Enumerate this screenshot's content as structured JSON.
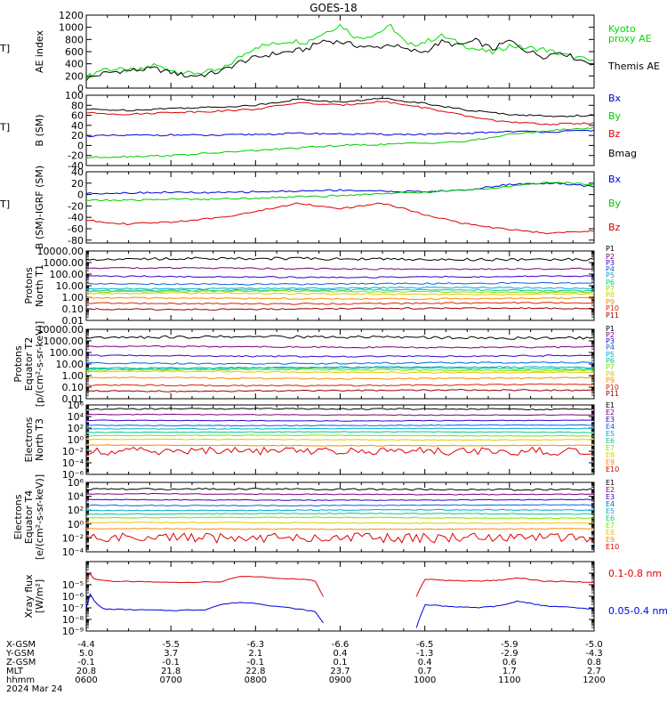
{
  "title": "GOES-18",
  "chart_data": [
    {
      "type": "line",
      "ylabel": "AE index [nT]",
      "ylim": [
        0,
        1200
      ],
      "log": false,
      "yticks": [
        0,
        200,
        400,
        600,
        800,
        1000,
        1200
      ],
      "ytick_labels": [
        "0",
        "200",
        "400",
        "600",
        "800",
        "1000",
        "1200"
      ],
      "legend": [
        "Kyoto",
        "proxy AE",
        "Themis AE"
      ],
      "series": [
        {
          "name": "Kyoto proxy AE",
          "color": "#00dd00",
          "x": [
            6.0,
            6.2,
            6.4,
            6.6,
            6.8,
            7.0,
            7.2,
            7.4,
            7.6,
            7.8,
            8.0,
            8.2,
            8.4,
            8.6,
            8.8,
            9.0,
            9.2,
            9.4,
            9.6,
            9.8,
            10.0,
            10.2,
            10.4,
            10.6,
            10.8,
            11.0,
            11.2,
            11.4,
            11.6,
            11.8,
            12.0
          ],
          "y": [
            180,
            320,
            300,
            280,
            380,
            300,
            240,
            260,
            300,
            500,
            680,
            720,
            780,
            760,
            900,
            1040,
            820,
            880,
            1020,
            700,
            760,
            860,
            740,
            640,
            580,
            700,
            660,
            640,
            560,
            500,
            440
          ]
        },
        {
          "name": "Themis AE",
          "color": "#000000",
          "x": [
            6.0,
            6.2,
            6.4,
            6.6,
            6.8,
            7.0,
            7.2,
            7.4,
            7.6,
            7.8,
            8.0,
            8.2,
            8.4,
            8.6,
            8.8,
            9.0,
            9.2,
            9.4,
            9.6,
            9.8,
            10.0,
            10.2,
            10.4,
            10.6,
            10.8,
            11.0,
            11.2,
            11.4,
            11.6,
            11.8,
            12.0
          ],
          "y": [
            150,
            240,
            280,
            300,
            320,
            260,
            200,
            220,
            280,
            420,
            500,
            560,
            600,
            640,
            780,
            760,
            700,
            660,
            720,
            620,
            600,
            760,
            700,
            780,
            640,
            780,
            620,
            520,
            600,
            480,
            400
          ]
        }
      ]
    },
    {
      "type": "line",
      "ylabel": "B (SM) [nT]",
      "ylim": [
        -40,
        100
      ],
      "log": false,
      "yticks": [
        -40,
        -20,
        0,
        20,
        40,
        60,
        80,
        100
      ],
      "ytick_labels": [
        "-40",
        "-20",
        "0",
        "20",
        "40",
        "60",
        "80",
        "100"
      ],
      "legend": [
        "Bx",
        "By",
        "Bz",
        "Bmag"
      ],
      "series": [
        {
          "name": "Bx",
          "color": "#0000dd",
          "x": [
            6.0,
            6.5,
            7.0,
            7.5,
            8.0,
            8.5,
            9.0,
            9.5,
            10.0,
            10.5,
            11.0,
            11.5,
            12.0
          ],
          "y": [
            19,
            20,
            21,
            20,
            22,
            24,
            23,
            22,
            22,
            24,
            28,
            27,
            30
          ]
        },
        {
          "name": "By",
          "color": "#00cc00",
          "x": [
            6.0,
            6.5,
            7.0,
            7.5,
            8.0,
            8.5,
            9.0,
            9.5,
            10.0,
            10.5,
            11.0,
            11.5,
            12.0
          ],
          "y": [
            -24,
            -22,
            -20,
            -15,
            -10,
            -5,
            0,
            2,
            5,
            8,
            22,
            30,
            35
          ]
        },
        {
          "name": "Bz",
          "color": "#dd0000",
          "x": [
            6.0,
            6.5,
            7.0,
            7.5,
            8.0,
            8.5,
            9.0,
            9.5,
            10.0,
            10.5,
            11.0,
            11.5,
            12.0
          ],
          "y": [
            65,
            62,
            66,
            68,
            72,
            85,
            80,
            88,
            75,
            58,
            46,
            42,
            45
          ]
        },
        {
          "name": "Bmag",
          "color": "#000000",
          "x": [
            6.0,
            6.5,
            7.0,
            7.5,
            8.0,
            8.5,
            9.0,
            9.5,
            10.0,
            10.5,
            11.0,
            11.5,
            12.0
          ],
          "y": [
            72,
            70,
            74,
            76,
            80,
            92,
            86,
            94,
            84,
            70,
            62,
            58,
            60
          ]
        }
      ]
    },
    {
      "type": "line",
      "ylabel": "B (SM)-IGRF (SM) [nT]",
      "ylim": [
        -85,
        40
      ],
      "log": false,
      "yticks": [
        -80,
        -60,
        -40,
        -20,
        0,
        20,
        40
      ],
      "ytick_labels": [
        "-80",
        "-60",
        "-40",
        "-20",
        "0",
        "20",
        "40"
      ],
      "legend": [
        "Bx",
        "By",
        "Bz"
      ],
      "series": [
        {
          "name": "Bx",
          "color": "#0000dd",
          "x": [
            6.0,
            6.5,
            7.0,
            7.5,
            8.0,
            8.5,
            9.0,
            9.5,
            10.0,
            10.5,
            11.0,
            11.5,
            12.0
          ],
          "y": [
            2,
            3,
            4,
            3,
            5,
            6,
            8,
            6,
            5,
            8,
            18,
            20,
            14
          ]
        },
        {
          "name": "By",
          "color": "#00cc00",
          "x": [
            6.0,
            6.5,
            7.0,
            7.5,
            8.0,
            8.5,
            9.0,
            9.5,
            10.0,
            10.5,
            11.0,
            11.5,
            12.0
          ],
          "y": [
            -10,
            -10,
            -8,
            -8,
            -6,
            -4,
            -2,
            2,
            4,
            8,
            14,
            22,
            18
          ]
        },
        {
          "name": "Bz",
          "color": "#dd0000",
          "x": [
            6.0,
            6.5,
            7.0,
            7.5,
            8.0,
            8.5,
            9.0,
            9.5,
            10.0,
            10.5,
            11.0,
            11.5,
            12.0
          ],
          "y": [
            -45,
            -52,
            -48,
            -42,
            -30,
            -15,
            -25,
            -15,
            -35,
            -52,
            -62,
            -68,
            -64
          ]
        }
      ]
    },
    {
      "type": "line",
      "ylabel": "Protons North T1",
      "log": true,
      "ylim": [
        0.01,
        10000
      ],
      "yticks": [
        0.01,
        0.1,
        1,
        10,
        100,
        1000,
        10000
      ],
      "ytick_labels": [
        "0.01",
        "0.10",
        "1.00",
        "10.00",
        "100.00",
        "1000.00",
        "10000.00"
      ],
      "legend": [
        "P1",
        "P2",
        "P3",
        "P4",
        "P5",
        "P6",
        "P7",
        "P8",
        "P9",
        "P10",
        "P11"
      ],
      "series": [
        {
          "name": "P1",
          "color": "#000000",
          "level": 2000
        },
        {
          "name": "P2",
          "color": "#7a0077",
          "level": 300
        },
        {
          "name": "P3",
          "color": "#3300cc",
          "level": 60
        },
        {
          "name": "P4",
          "color": "#0066dd",
          "level": 15
        },
        {
          "name": "P5",
          "color": "#00aacc",
          "level": 6
        },
        {
          "name": "P6",
          "color": "#00cc88",
          "level": 4
        },
        {
          "name": "P7",
          "color": "#88dd00",
          "level": 3
        },
        {
          "name": "P8",
          "color": "#ddcc00",
          "level": 2
        },
        {
          "name": "P9",
          "color": "#ff8800",
          "level": 0.8
        },
        {
          "name": "P10",
          "color": "#dd2200",
          "level": 0.3
        },
        {
          "name": "P11",
          "color": "#990000",
          "level": 0.1
        }
      ]
    },
    {
      "type": "line",
      "ylabel": "Protons Equator T2 [p/(cm²-s-sr-keV)]",
      "log": true,
      "ylim": [
        0.01,
        10000
      ],
      "yticks": [
        0.01,
        0.1,
        1,
        10,
        100,
        1000,
        10000
      ],
      "ytick_labels": [
        "0.01",
        "0.10",
        "1.00",
        "10.00",
        "100.00",
        "1000.00",
        "10000.00"
      ],
      "legend": [
        "P1",
        "P2",
        "P3",
        "P4",
        "P5",
        "P6",
        "P7",
        "P8",
        "P9",
        "P10",
        "P11"
      ],
      "series": [
        {
          "name": "P1",
          "color": "#000000",
          "level": 2000
        },
        {
          "name": "P2",
          "color": "#7a0077",
          "level": 300
        },
        {
          "name": "P3",
          "color": "#3300cc",
          "level": 50
        },
        {
          "name": "P4",
          "color": "#0066dd",
          "level": 12
        },
        {
          "name": "P5",
          "color": "#00aacc",
          "level": 5
        },
        {
          "name": "P6",
          "color": "#00cc88",
          "level": 4
        },
        {
          "name": "P7",
          "color": "#88dd00",
          "level": 3
        },
        {
          "name": "P8",
          "color": "#ddcc00",
          "level": 2
        },
        {
          "name": "P9",
          "color": "#ff8800",
          "level": 0.6
        },
        {
          "name": "P10",
          "color": "#dd2200",
          "level": 0.15
        },
        {
          "name": "P11",
          "color": "#990000",
          "level": 0.05
        }
      ]
    },
    {
      "type": "line",
      "ylabel": "Electrons North T3",
      "log": true,
      "ylim": [
        1e-06,
        1000000.0
      ],
      "yticks": [
        1e-06,
        0.0001,
        0.01,
        1,
        100,
        10000,
        1000000
      ],
      "ytick_labels": [
        "10⁻⁶",
        "10⁻⁴",
        "10⁻²",
        "10⁰",
        "10²",
        "10⁴",
        "10⁶"
      ],
      "legend": [
        "E1",
        "E2",
        "E3",
        "E4",
        "E5",
        "E6",
        "E7",
        "E8",
        "E9",
        "E10"
      ],
      "series": [
        {
          "name": "E1",
          "color": "#000000",
          "level": 200000
        },
        {
          "name": "E2",
          "color": "#7a0077",
          "level": 20000
        },
        {
          "name": "E3",
          "color": "#3300cc",
          "level": 2000
        },
        {
          "name": "E4",
          "color": "#0066dd",
          "level": 300
        },
        {
          "name": "E5",
          "color": "#00aacc",
          "level": 80
        },
        {
          "name": "E6",
          "color": "#00cc88",
          "level": 20
        },
        {
          "name": "E7",
          "color": "#88dd00",
          "level": 5
        },
        {
          "name": "E8",
          "color": "#ddcc00",
          "level": 1
        },
        {
          "name": "E9",
          "color": "#ff8800",
          "level": 0.1
        },
        {
          "name": "E10",
          "color": "#dd0000",
          "level": 0.01
        }
      ]
    },
    {
      "type": "line",
      "ylabel": "Electrons Equator T4 [e/(cm²-s-sr-keV)]",
      "log": true,
      "ylim": [
        0.0001,
        1000000.0
      ],
      "yticks": [
        0.0001,
        0.01,
        1,
        100,
        10000,
        1000000
      ],
      "ytick_labels": [
        "10⁻⁴",
        "10⁻²",
        "10⁰",
        "10²",
        "10⁴",
        "10⁶"
      ],
      "legend": [
        "E1",
        "E2",
        "E3",
        "E4",
        "E5",
        "E6",
        "E7",
        "E8",
        "E9",
        "E10"
      ],
      "series": [
        {
          "name": "E1",
          "color": "#000000",
          "level": 100000
        },
        {
          "name": "E2",
          "color": "#7a0077",
          "level": 20000
        },
        {
          "name": "E3",
          "color": "#3300cc",
          "level": 3000
        },
        {
          "name": "E4",
          "color": "#0066dd",
          "level": 500
        },
        {
          "name": "E5",
          "color": "#00aacc",
          "level": 100
        },
        {
          "name": "E6",
          "color": "#00cc88",
          "level": 30
        },
        {
          "name": "E7",
          "color": "#88dd00",
          "level": 8
        },
        {
          "name": "E8",
          "color": "#ddcc00",
          "level": 1.5
        },
        {
          "name": "E9",
          "color": "#ff8800",
          "level": 0.2
        },
        {
          "name": "E10",
          "color": "#dd0000",
          "level": 0.01
        }
      ]
    },
    {
      "type": "line",
      "ylabel": "Xray flux [W/m²]",
      "log": true,
      "ylim": [
        1e-09,
        0.001
      ],
      "yticks": [
        1e-09,
        1e-08,
        1e-07,
        1e-06,
        1e-05,
        0.0001,
        0.001
      ],
      "ytick_labels": [
        "10⁻⁹",
        "10⁻⁸",
        "10⁻⁷",
        "10⁻⁶",
        "10⁻⁵",
        "",
        ""
      ],
      "legend": [
        "0.1-0.8 nm",
        "0.05-0.4 nm"
      ],
      "series": [
        {
          "name": "0.1-0.8 nm",
          "color": "#dd0000",
          "segments": [
            {
              "x": [
                6.0,
                6.05,
                6.1,
                6.3,
                6.6,
                7.0,
                7.4,
                7.6,
                7.8,
                8.0,
                8.2,
                8.5,
                8.7,
                8.8
              ],
              "y": [
                5e-05,
                8e-05,
                3e-05,
                2e-05,
                1.8e-05,
                1.6e-05,
                1.7e-05,
                1.8e-05,
                5e-05,
                5e-05,
                4e-05,
                3e-05,
                2.5e-05,
                1e-06
              ]
            },
            {
              "x": [
                9.9,
                10.0,
                10.2,
                10.6,
                10.9,
                11.1,
                11.4,
                11.8,
                12.0
              ],
              "y": [
                1e-06,
                3e-05,
                2.5e-05,
                2e-05,
                2.5e-05,
                4e-05,
                2e-05,
                1.8e-05,
                1.5e-05
              ]
            }
          ]
        },
        {
          "name": "0.05-0.4 nm",
          "color": "#0000dd",
          "segments": [
            {
              "x": [
                6.0,
                6.05,
                6.1,
                6.2,
                6.5,
                7.0,
                7.4,
                7.6,
                7.8,
                8.0,
                8.2,
                8.5,
                8.7,
                8.8
              ],
              "y": [
                1e-07,
                2e-06,
                3e-07,
                8e-08,
                7e-08,
                6e-08,
                7e-08,
                2e-07,
                3e-07,
                2.5e-07,
                1.5e-07,
                8e-08,
                5e-08,
                5e-09
              ]
            },
            {
              "x": [
                9.9,
                10.0,
                10.2,
                10.6,
                10.9,
                11.1,
                11.4,
                11.8,
                12.0
              ],
              "y": [
                2e-09,
                2e-07,
                1.5e-07,
                1e-07,
                1.5e-07,
                4e-07,
                1.5e-07,
                1e-07,
                8e-08
              ]
            }
          ]
        }
      ]
    }
  ],
  "ephemeris": {
    "rows": [
      {
        "label": "X-GSM",
        "values": [
          "-4.4",
          "-5.5",
          "-6.3",
          "-6.6",
          "-6.5",
          "-5.9",
          "-5.0"
        ]
      },
      {
        "label": "Y-GSM",
        "values": [
          "5.0",
          "3.7",
          "2.1",
          "0.4",
          "-1.3",
          "-2.9",
          "-4.3"
        ]
      },
      {
        "label": "Z-GSM",
        "values": [
          "-0.1",
          "-0.1",
          "-0.1",
          "0.1",
          "0.4",
          "0.6",
          "0.8"
        ]
      },
      {
        "label": "MLT",
        "values": [
          "20.8",
          "21.8",
          "22.8",
          "23.7",
          "0.7",
          "1.7",
          "2.7"
        ]
      },
      {
        "label": "hhmm",
        "values": [
          "0600",
          "0700",
          "0800",
          "0900",
          "1000",
          "1100",
          "1200"
        ]
      }
    ],
    "date": "2024 Mar 24"
  }
}
